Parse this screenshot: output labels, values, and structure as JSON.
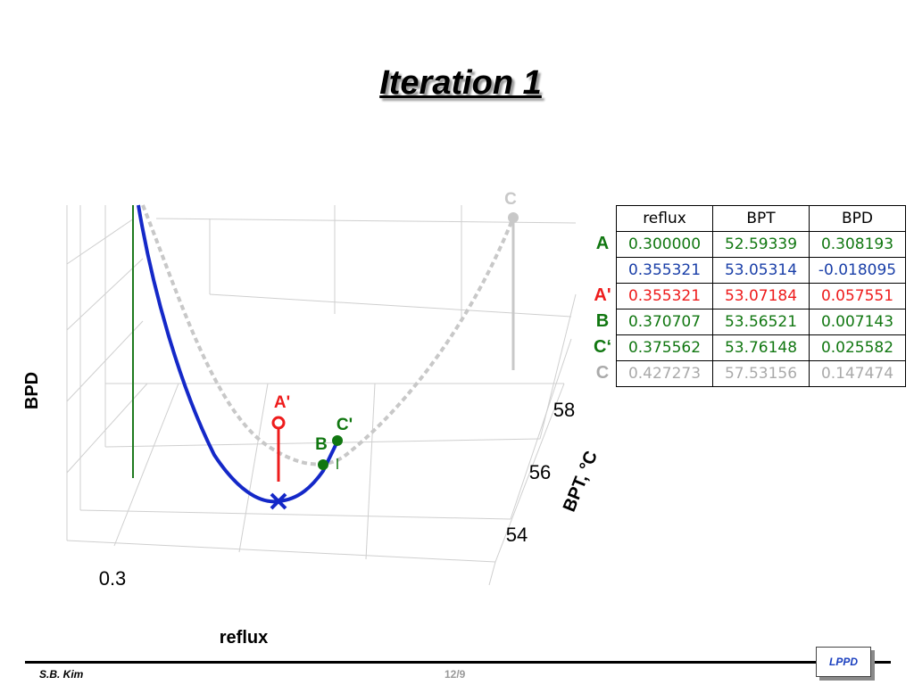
{
  "slide": {
    "title": "Iteration 1",
    "author": "S.B. Kim",
    "page": "12/9",
    "logo": "LPPD"
  },
  "chart_data": {
    "type": "line",
    "title": "",
    "xlabel": "reflux",
    "ylabel": "BPT, °C",
    "zlabel": "BPD",
    "x_tick_labels": [
      "0.3"
    ],
    "y_tick_labels": [
      "54",
      "56",
      "58"
    ],
    "grid": true,
    "series": [
      {
        "color": "#1428c8",
        "style": "solid",
        "points": [
          [
            0.3,
            52.59339,
            0.308193
          ],
          [
            0.355321,
            53.05314,
            -0.018095
          ],
          [
            0.375562,
            53.76148,
            0.025582
          ]
        ]
      },
      {
        "color": "#c8c8c8",
        "style": "dashed",
        "points": [
          [
            0.3,
            52.59339,
            0.308193
          ],
          [
            0.355321,
            53.07184,
            0.057551
          ],
          [
            0.427273,
            57.53156,
            0.147474
          ]
        ]
      }
    ],
    "markers": [
      {
        "label": "A'",
        "color": "#ee1c1c",
        "shape": "circle"
      },
      {
        "label": "B",
        "color": "#117711",
        "shape": "dot"
      },
      {
        "label": "C'",
        "color": "#117711",
        "shape": "dot"
      },
      {
        "label": "C",
        "color": "#c8c8c8",
        "shape": "dot"
      }
    ],
    "min_marker": {
      "shape": "x",
      "color": "#1428c8"
    },
    "colors": {
      "green": "#117711",
      "blue": "#1a3fa8",
      "red": "#ee1c1c",
      "gray": "#aaaaaa"
    }
  },
  "table": {
    "headers": [
      "reflux",
      "BPT",
      "BPD"
    ],
    "rows": [
      {
        "label": "A",
        "color": "#117711",
        "values": [
          "0.300000",
          "52.59339",
          "0.308193"
        ]
      },
      {
        "label": "",
        "color": "#1a3fa8",
        "values": [
          "0.355321",
          "53.05314",
          "-0.018095"
        ]
      },
      {
        "label": "A'",
        "color": "#ee1c1c",
        "values": [
          "0.355321",
          "53.07184",
          "0.057551"
        ]
      },
      {
        "label": "B",
        "color": "#117711",
        "values": [
          "0.370707",
          "53.56521",
          "0.007143"
        ]
      },
      {
        "label": "C‘",
        "color": "#117711",
        "values": [
          "0.375562",
          "53.76148",
          "0.025582"
        ]
      },
      {
        "label": "C",
        "color": "#aaaaaa",
        "values": [
          "0.427273",
          "57.53156",
          "0.147474"
        ]
      }
    ]
  }
}
